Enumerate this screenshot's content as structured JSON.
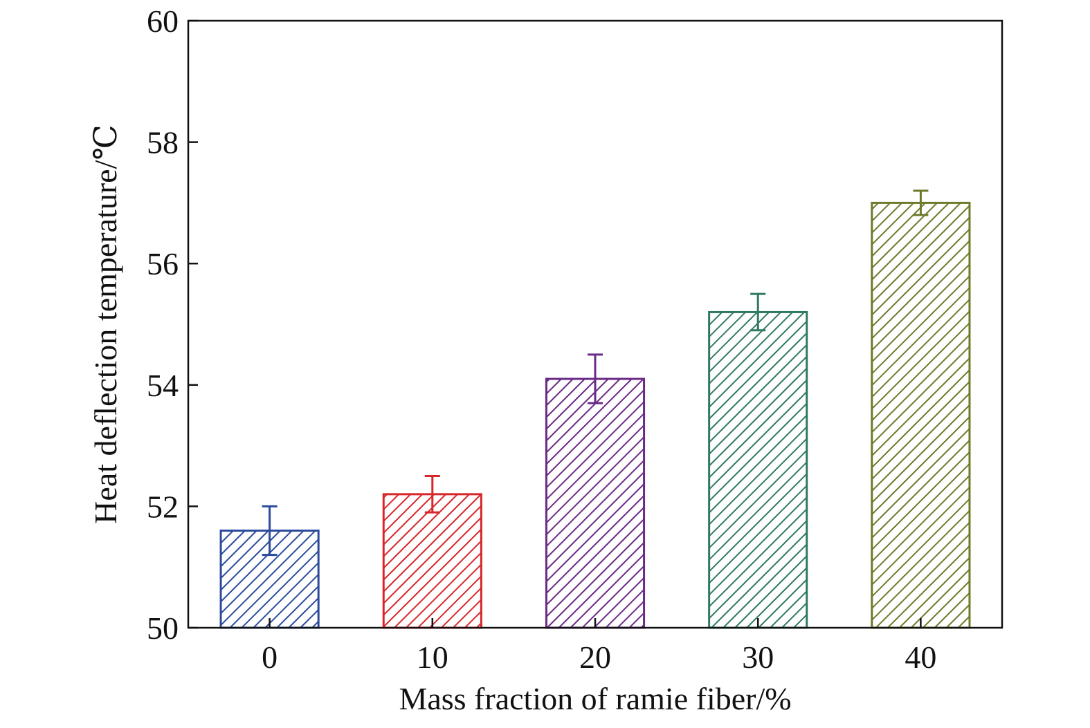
{
  "chart_data": {
    "type": "bar",
    "title": "",
    "xlabel": "Mass fraction of ramie fiber/%",
    "ylabel": "Heat deflection temperature/℃",
    "categories": [
      "0",
      "10",
      "20",
      "30",
      "40"
    ],
    "values": [
      51.6,
      52.2,
      54.1,
      55.2,
      57.0
    ],
    "errors": [
      0.4,
      0.3,
      0.4,
      0.3,
      0.2
    ],
    "colors": [
      "#2b4a9c",
      "#d8262a",
      "#6a2a86",
      "#2f7a5e",
      "#6e7a2a"
    ],
    "ylim": [
      50,
      60
    ],
    "yticks": [
      50,
      52,
      54,
      56,
      58,
      60
    ],
    "grid": false,
    "bar_fill": "diagonal-hatch"
  }
}
